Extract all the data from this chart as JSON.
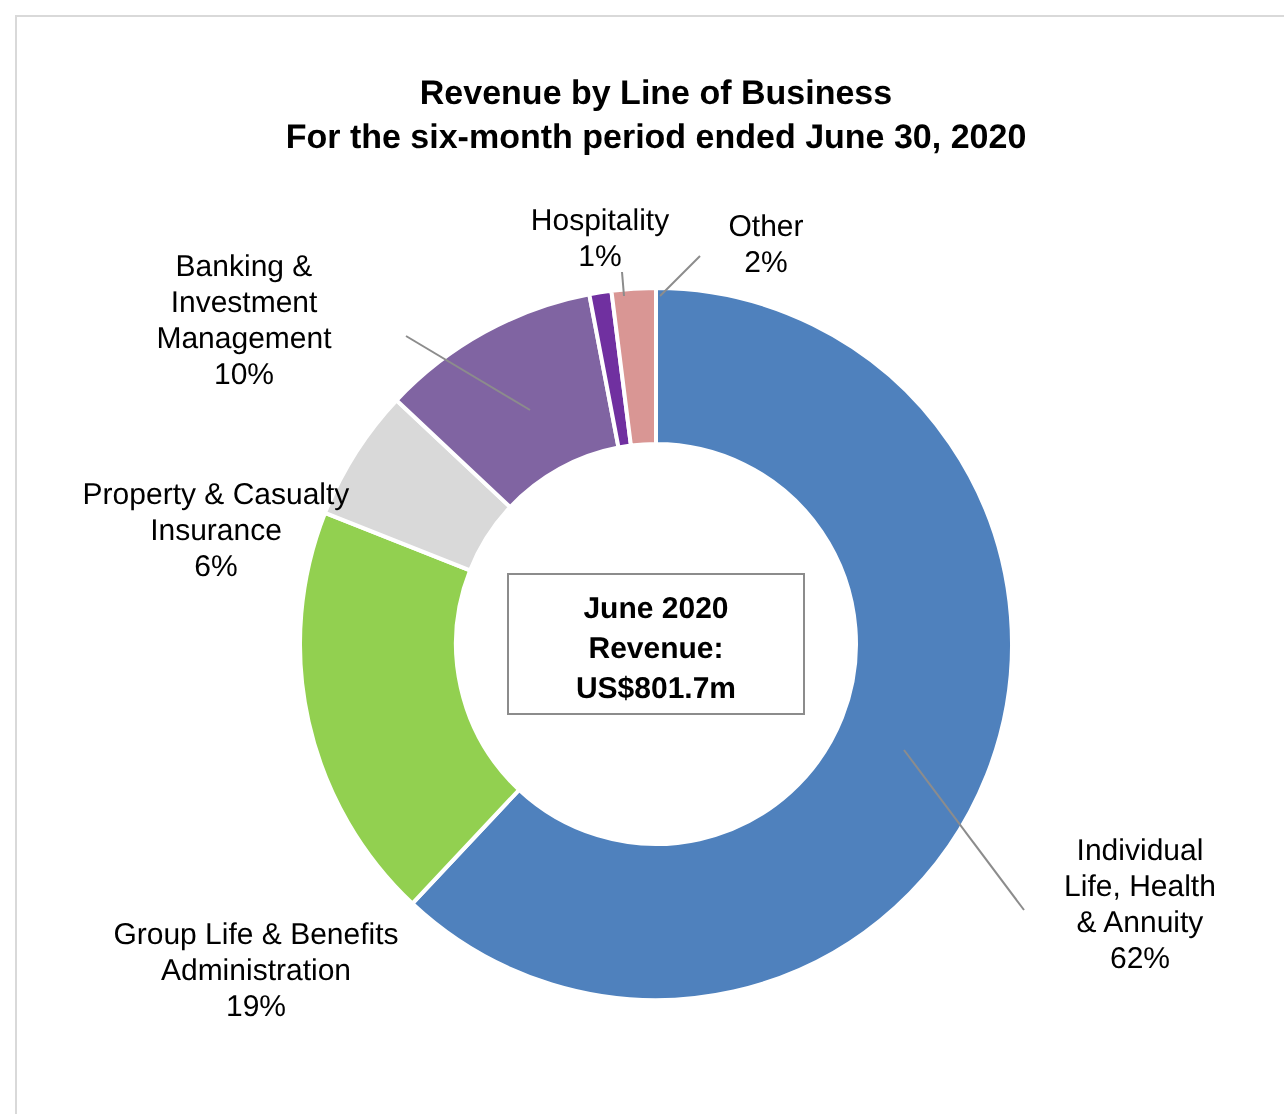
{
  "chart_data": {
    "type": "donut",
    "title": "Revenue by Line of Business",
    "subtitle": "For the six-month period ended June 30, 2020",
    "categories": [
      "Individual Life, Health & Annuity",
      "Group Life & Benefits Administration",
      "Property & Casualty Insurance",
      "Banking & Investment Management",
      "Hospitality",
      "Other"
    ],
    "values": [
      62,
      19,
      6,
      10,
      1,
      2
    ],
    "value_labels": [
      "62%",
      "19%",
      "6%",
      "10%",
      "1%",
      "2%"
    ],
    "colors": [
      "#4f81bd",
      "#92d050",
      "#d9d9d9",
      "#8064a2",
      "#7030a0",
      "#d99694"
    ],
    "annotations": [
      "June 2020 Revenue: US$801.7m"
    ]
  }
}
